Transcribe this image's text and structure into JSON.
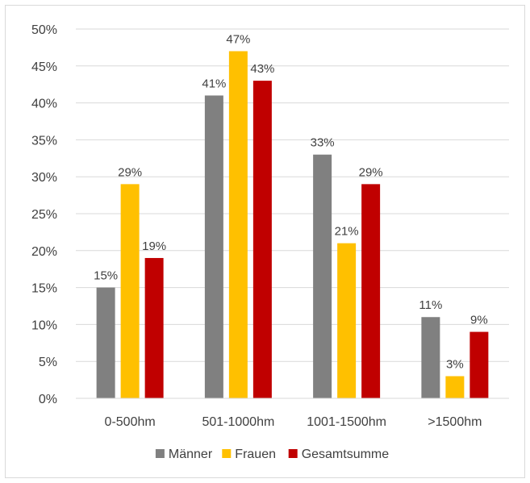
{
  "chart_data": {
    "type": "bar",
    "categories": [
      "0-500hm",
      "501-1000hm",
      "1001-1500hm",
      ">1500hm"
    ],
    "series": [
      {
        "name": "Männer",
        "color": "#808080",
        "values": [
          15,
          41,
          33,
          11
        ],
        "labels": [
          "15%",
          "41%",
          "33%",
          "11%"
        ]
      },
      {
        "name": "Frauen",
        "color": "#ffc000",
        "values": [
          29,
          47,
          21,
          3
        ],
        "labels": [
          "29%",
          "47%",
          "21%",
          "3%"
        ]
      },
      {
        "name": "Gesamtsumme",
        "color": "#c00000",
        "values": [
          19,
          43,
          29,
          9
        ],
        "labels": [
          "19%",
          "43%",
          "29%",
          "9%"
        ]
      }
    ],
    "ylim": [
      0,
      50
    ],
    "yticks": [
      0,
      5,
      10,
      15,
      20,
      25,
      30,
      35,
      40,
      45,
      50
    ],
    "ytick_labels": [
      "0%",
      "5%",
      "10%",
      "15%",
      "20%",
      "25%",
      "30%",
      "35%",
      "40%",
      "45%",
      "50%"
    ],
    "grid": true,
    "legend_position": "bottom",
    "title": "",
    "xlabel": "",
    "ylabel": ""
  }
}
